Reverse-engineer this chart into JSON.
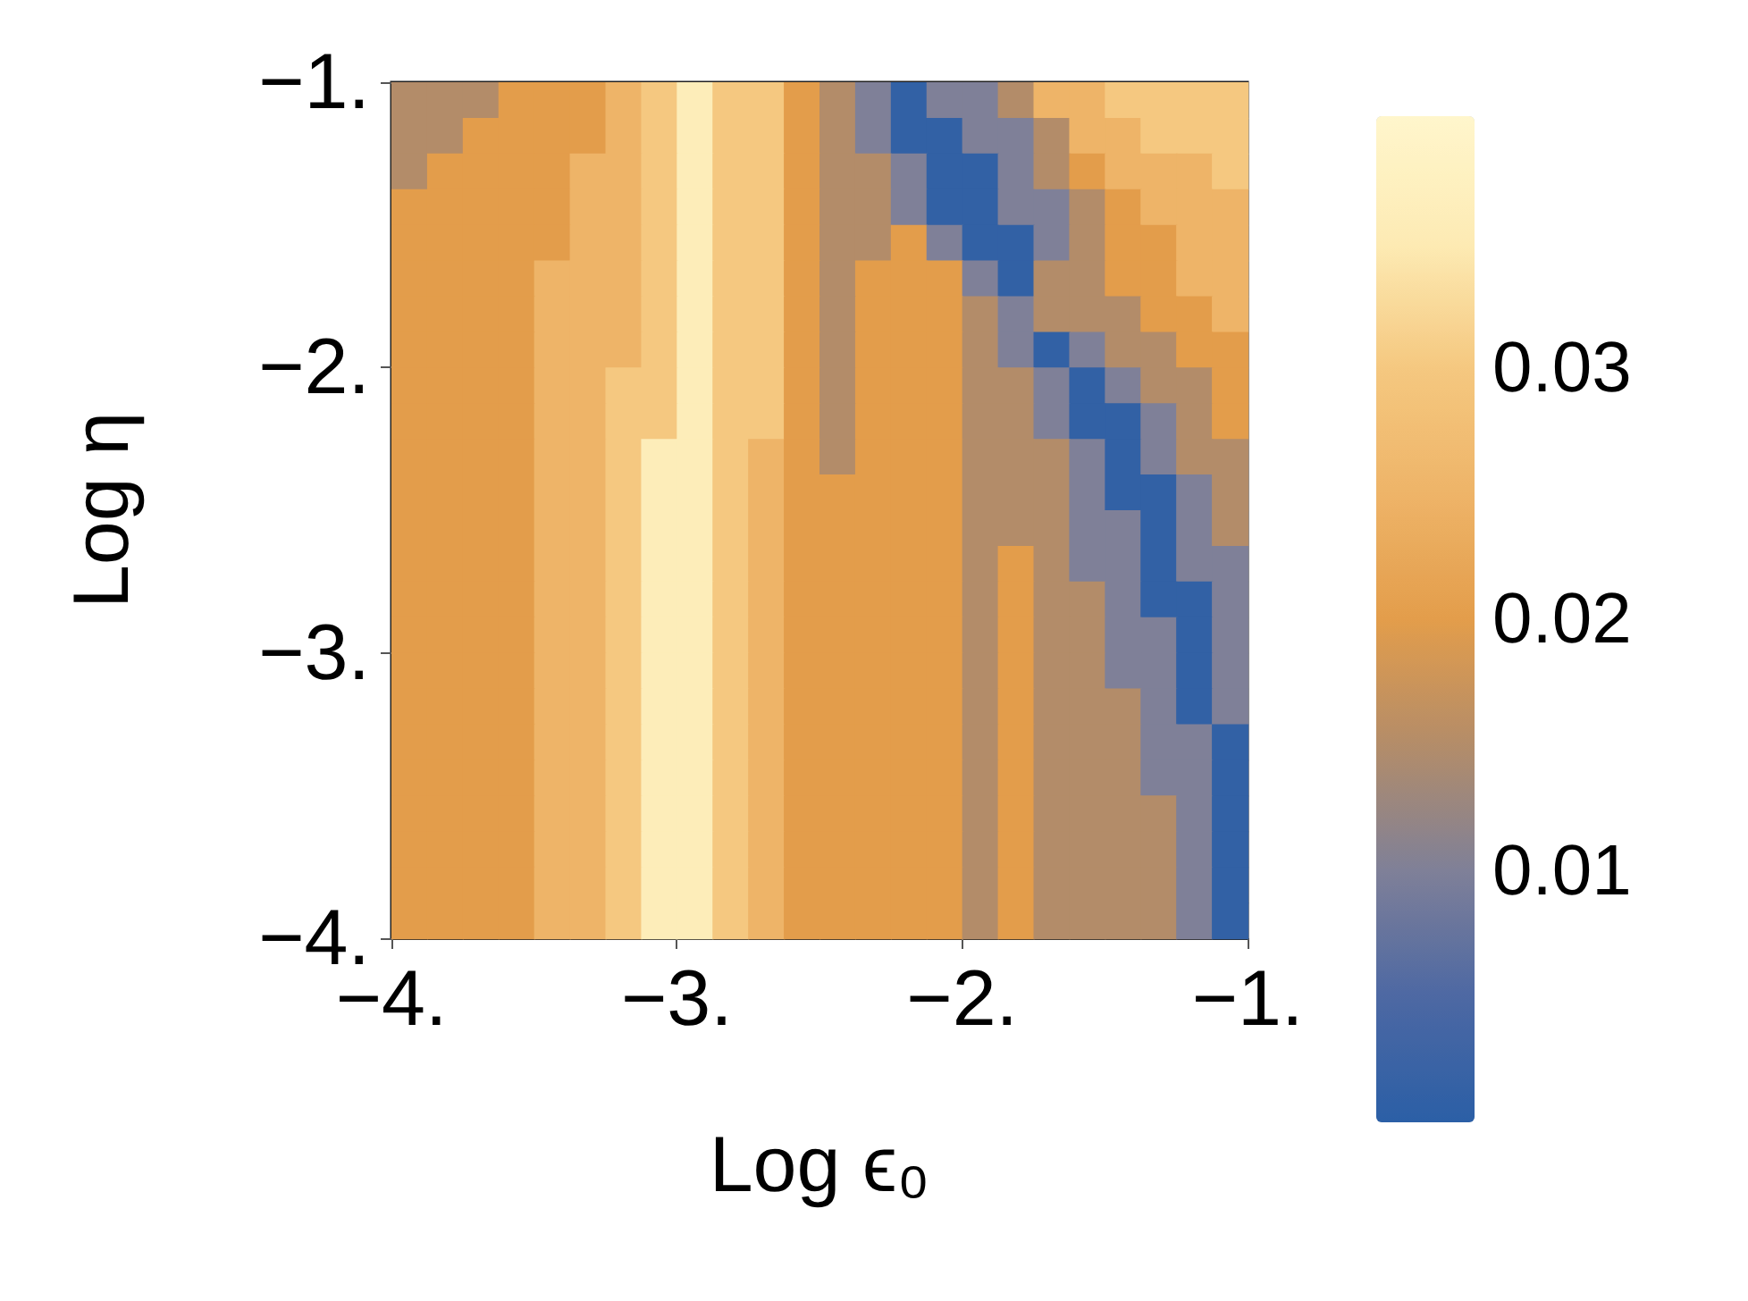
{
  "chart_data": {
    "type": "heatmap",
    "xlabel": "Log ϵ₀",
    "ylabel": "Log η",
    "xlim": [
      -4,
      -1
    ],
    "ylim": [
      -4,
      -1
    ],
    "xticks": [
      {
        "value": -4,
        "label": "−4."
      },
      {
        "value": -3,
        "label": "−3."
      },
      {
        "value": -2,
        "label": "−2."
      },
      {
        "value": -1,
        "label": "−1."
      }
    ],
    "yticks": [
      {
        "value": -4,
        "label": "−4."
      },
      {
        "value": -3,
        "label": "−3."
      },
      {
        "value": -2,
        "label": "−2."
      },
      {
        "value": -1,
        "label": "−1."
      }
    ],
    "clim": [
      0,
      0.04
    ],
    "cticks": [
      0.01,
      0.02,
      0.03
    ],
    "colors": [
      "#2b5fa6",
      "#4d68a3",
      "#7f8098",
      "#b38c69",
      "#e39d4b",
      "#eeb468",
      "#f5c880",
      "#fdebb4",
      "#fff6cc"
    ],
    "cells": [
      [
        0.015,
        0.015,
        0.015,
        0.02,
        0.02,
        0.02,
        0.025,
        0.03,
        0.036,
        0.03,
        0.03,
        0.02,
        0.015,
        0.01,
        0.001,
        0.01,
        0.01,
        0.015,
        0.025,
        0.025,
        0.03,
        0.03,
        0.03,
        0.03
      ],
      [
        0.015,
        0.015,
        0.02,
        0.02,
        0.02,
        0.02,
        0.025,
        0.03,
        0.036,
        0.03,
        0.03,
        0.02,
        0.015,
        0.01,
        0.001,
        0.001,
        0.01,
        0.01,
        0.015,
        0.025,
        0.025,
        0.03,
        0.03,
        0.03
      ],
      [
        0.015,
        0.02,
        0.02,
        0.02,
        0.02,
        0.025,
        0.025,
        0.03,
        0.036,
        0.03,
        0.03,
        0.02,
        0.015,
        0.015,
        0.01,
        0.001,
        0.001,
        0.01,
        0.015,
        0.02,
        0.025,
        0.025,
        0.025,
        0.03
      ],
      [
        0.02,
        0.02,
        0.02,
        0.02,
        0.02,
        0.025,
        0.025,
        0.03,
        0.036,
        0.03,
        0.03,
        0.02,
        0.015,
        0.015,
        0.01,
        0.001,
        0.001,
        0.01,
        0.01,
        0.015,
        0.02,
        0.025,
        0.025,
        0.025
      ],
      [
        0.02,
        0.02,
        0.02,
        0.02,
        0.02,
        0.025,
        0.025,
        0.03,
        0.036,
        0.03,
        0.03,
        0.02,
        0.015,
        0.015,
        0.02,
        0.01,
        0.001,
        0.001,
        0.01,
        0.015,
        0.02,
        0.02,
        0.025,
        0.025
      ],
      [
        0.02,
        0.02,
        0.02,
        0.02,
        0.025,
        0.025,
        0.025,
        0.03,
        0.036,
        0.03,
        0.03,
        0.02,
        0.015,
        0.02,
        0.02,
        0.02,
        0.01,
        0.001,
        0.015,
        0.015,
        0.02,
        0.02,
        0.025,
        0.025
      ],
      [
        0.02,
        0.02,
        0.02,
        0.02,
        0.025,
        0.025,
        0.025,
        0.03,
        0.036,
        0.03,
        0.03,
        0.02,
        0.015,
        0.02,
        0.02,
        0.02,
        0.015,
        0.01,
        0.015,
        0.015,
        0.015,
        0.02,
        0.02,
        0.025
      ],
      [
        0.02,
        0.02,
        0.02,
        0.02,
        0.025,
        0.025,
        0.025,
        0.03,
        0.036,
        0.03,
        0.03,
        0.02,
        0.015,
        0.02,
        0.02,
        0.02,
        0.015,
        0.01,
        0.001,
        0.01,
        0.015,
        0.015,
        0.02,
        0.02
      ],
      [
        0.02,
        0.02,
        0.02,
        0.02,
        0.025,
        0.025,
        0.03,
        0.03,
        0.036,
        0.03,
        0.03,
        0.02,
        0.015,
        0.02,
        0.02,
        0.02,
        0.015,
        0.015,
        0.01,
        0.001,
        0.01,
        0.015,
        0.015,
        0.02
      ],
      [
        0.02,
        0.02,
        0.02,
        0.02,
        0.025,
        0.025,
        0.03,
        0.03,
        0.036,
        0.03,
        0.03,
        0.02,
        0.015,
        0.02,
        0.02,
        0.02,
        0.015,
        0.015,
        0.01,
        0.001,
        0.001,
        0.01,
        0.015,
        0.02
      ],
      [
        0.02,
        0.02,
        0.02,
        0.02,
        0.025,
        0.025,
        0.03,
        0.036,
        0.036,
        0.03,
        0.025,
        0.02,
        0.015,
        0.02,
        0.02,
        0.02,
        0.015,
        0.015,
        0.015,
        0.01,
        0.001,
        0.01,
        0.015,
        0.015
      ],
      [
        0.02,
        0.02,
        0.02,
        0.02,
        0.025,
        0.025,
        0.03,
        0.036,
        0.036,
        0.03,
        0.025,
        0.02,
        0.02,
        0.02,
        0.02,
        0.02,
        0.015,
        0.015,
        0.015,
        0.01,
        0.001,
        0.001,
        0.01,
        0.015
      ],
      [
        0.02,
        0.02,
        0.02,
        0.02,
        0.025,
        0.025,
        0.03,
        0.036,
        0.036,
        0.03,
        0.025,
        0.02,
        0.02,
        0.02,
        0.02,
        0.02,
        0.015,
        0.015,
        0.015,
        0.01,
        0.01,
        0.001,
        0.01,
        0.015
      ],
      [
        0.02,
        0.02,
        0.02,
        0.02,
        0.025,
        0.025,
        0.03,
        0.036,
        0.036,
        0.03,
        0.025,
        0.02,
        0.02,
        0.02,
        0.02,
        0.02,
        0.015,
        0.02,
        0.015,
        0.01,
        0.01,
        0.001,
        0.01,
        0.01
      ],
      [
        0.02,
        0.02,
        0.02,
        0.02,
        0.025,
        0.025,
        0.03,
        0.036,
        0.036,
        0.03,
        0.025,
        0.02,
        0.02,
        0.02,
        0.02,
        0.02,
        0.015,
        0.02,
        0.015,
        0.015,
        0.01,
        0.001,
        0.001,
        0.01
      ],
      [
        0.02,
        0.02,
        0.02,
        0.02,
        0.025,
        0.025,
        0.03,
        0.036,
        0.036,
        0.03,
        0.025,
        0.02,
        0.02,
        0.02,
        0.02,
        0.02,
        0.015,
        0.02,
        0.015,
        0.015,
        0.01,
        0.01,
        0.001,
        0.01
      ],
      [
        0.02,
        0.02,
        0.02,
        0.02,
        0.025,
        0.025,
        0.03,
        0.036,
        0.036,
        0.03,
        0.025,
        0.02,
        0.02,
        0.02,
        0.02,
        0.02,
        0.015,
        0.02,
        0.015,
        0.015,
        0.01,
        0.01,
        0.001,
        0.01
      ],
      [
        0.02,
        0.02,
        0.02,
        0.02,
        0.025,
        0.025,
        0.03,
        0.036,
        0.036,
        0.03,
        0.025,
        0.02,
        0.02,
        0.02,
        0.02,
        0.02,
        0.015,
        0.02,
        0.015,
        0.015,
        0.015,
        0.01,
        0.001,
        0.01
      ],
      [
        0.02,
        0.02,
        0.02,
        0.02,
        0.025,
        0.025,
        0.03,
        0.036,
        0.036,
        0.03,
        0.025,
        0.02,
        0.02,
        0.02,
        0.02,
        0.02,
        0.015,
        0.02,
        0.015,
        0.015,
        0.015,
        0.01,
        0.01,
        0.001
      ],
      [
        0.02,
        0.02,
        0.02,
        0.02,
        0.025,
        0.025,
        0.03,
        0.036,
        0.036,
        0.03,
        0.025,
        0.02,
        0.02,
        0.02,
        0.02,
        0.02,
        0.015,
        0.02,
        0.015,
        0.015,
        0.015,
        0.01,
        0.01,
        0.001
      ],
      [
        0.02,
        0.02,
        0.02,
        0.02,
        0.025,
        0.025,
        0.03,
        0.036,
        0.036,
        0.03,
        0.025,
        0.02,
        0.02,
        0.02,
        0.02,
        0.02,
        0.015,
        0.02,
        0.015,
        0.015,
        0.015,
        0.015,
        0.01,
        0.001
      ],
      [
        0.02,
        0.02,
        0.02,
        0.02,
        0.025,
        0.025,
        0.03,
        0.036,
        0.036,
        0.03,
        0.025,
        0.02,
        0.02,
        0.02,
        0.02,
        0.02,
        0.015,
        0.02,
        0.015,
        0.015,
        0.015,
        0.015,
        0.01,
        0.001
      ],
      [
        0.02,
        0.02,
        0.02,
        0.02,
        0.025,
        0.025,
        0.03,
        0.036,
        0.036,
        0.03,
        0.025,
        0.02,
        0.02,
        0.02,
        0.02,
        0.02,
        0.015,
        0.02,
        0.015,
        0.015,
        0.015,
        0.015,
        0.01,
        0.001
      ],
      [
        0.02,
        0.02,
        0.02,
        0.02,
        0.025,
        0.025,
        0.03,
        0.036,
        0.036,
        0.03,
        0.025,
        0.02,
        0.02,
        0.02,
        0.02,
        0.02,
        0.015,
        0.02,
        0.015,
        0.015,
        0.015,
        0.015,
        0.01,
        0.001
      ]
    ]
  }
}
